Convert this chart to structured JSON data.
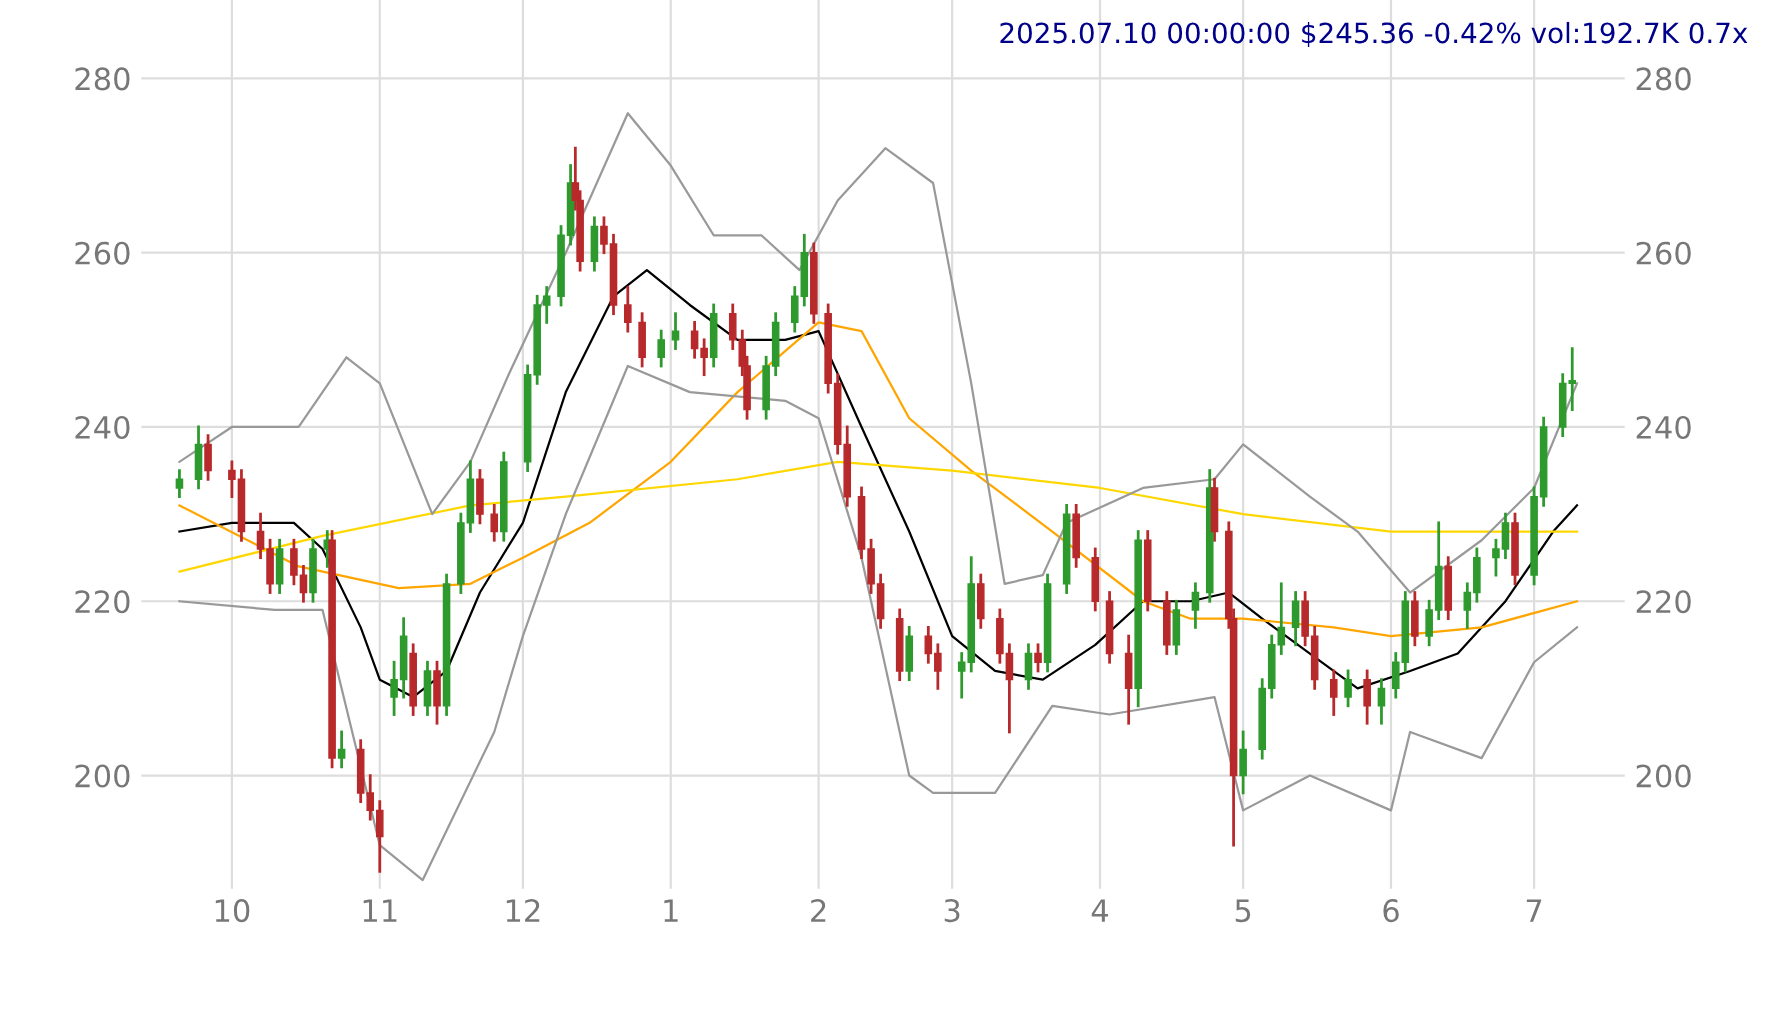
{
  "chart_data": {
    "type": "candlestick",
    "title": "2025.07.10 00:00:00 $245.36 -0.42% vol:192.7K 0.7x",
    "x": [
      "2024-09-20",
      "2024-09-24",
      "2024-09-26",
      "2024-10-01",
      "2024-10-03",
      "2024-10-07",
      "2024-10-09",
      "2024-10-11",
      "2024-10-14",
      "2024-10-16",
      "2024-10-18",
      "2024-10-21",
      "2024-10-22",
      "2024-10-24",
      "2024-10-28",
      "2024-10-30",
      "2024-11-01",
      "2024-11-04",
      "2024-11-06",
      "2024-11-08",
      "2024-11-11",
      "2024-11-13",
      "2024-11-15",
      "2024-11-18",
      "2024-11-20",
      "2024-11-22",
      "2024-11-25",
      "2024-11-27",
      "2024-12-02",
      "2024-12-04",
      "2024-12-06",
      "2024-12-09",
      "2024-12-11",
      "2024-12-12",
      "2024-12-13",
      "2024-12-16",
      "2024-12-18",
      "2024-12-20",
      "2024-12-23",
      "2024-12-26",
      "2024-12-30",
      "2025-01-02",
      "2025-01-06",
      "2025-01-08",
      "2025-01-10",
      "2025-01-14",
      "2025-01-16",
      "2025-01-17",
      "2025-01-21",
      "2025-01-23",
      "2025-01-27",
      "2025-01-29",
      "2025-01-31",
      "2025-02-03",
      "2025-02-05",
      "2025-02-07",
      "2025-02-10",
      "2025-02-12",
      "2025-02-14",
      "2025-02-18",
      "2025-02-20",
      "2025-02-24",
      "2025-02-26",
      "2025-03-03",
      "2025-03-05",
      "2025-03-07",
      "2025-03-11",
      "2025-03-13",
      "2025-03-17",
      "2025-03-19",
      "2025-03-21",
      "2025-03-25",
      "2025-03-27",
      "2025-03-31",
      "2025-04-03",
      "2025-04-07",
      "2025-04-09",
      "2025-04-11",
      "2025-04-15",
      "2025-04-17",
      "2025-04-21",
      "2025-04-24",
      "2025-04-25",
      "2025-04-28",
      "2025-04-29",
      "2025-05-01",
      "2025-05-05",
      "2025-05-07",
      "2025-05-09",
      "2025-05-12",
      "2025-05-14",
      "2025-05-16",
      "2025-05-20",
      "2025-05-23",
      "2025-05-27",
      "2025-05-30",
      "2025-06-02",
      "2025-06-04",
      "2025-06-06",
      "2025-06-09",
      "2025-06-11",
      "2025-06-13",
      "2025-06-17",
      "2025-06-19",
      "2025-06-23",
      "2025-06-25",
      "2025-06-27",
      "2025-07-01",
      "2025-07-03",
      "2025-07-07",
      "2025-07-09"
    ],
    "ohlc": [
      [
        233,
        235,
        232,
        234
      ],
      [
        234,
        240,
        233,
        238
      ],
      [
        238,
        239,
        234,
        235
      ],
      [
        235,
        236,
        232,
        234
      ],
      [
        234,
        235,
        227,
        228
      ],
      [
        228,
        230,
        225,
        226
      ],
      [
        226,
        227,
        221,
        222
      ],
      [
        222,
        227,
        221,
        226
      ],
      [
        226,
        227,
        222,
        223
      ],
      [
        223,
        224,
        220,
        221
      ],
      [
        221,
        227,
        220,
        226
      ],
      [
        226,
        228,
        224,
        227
      ],
      [
        227,
        228,
        201,
        202
      ],
      [
        202,
        205,
        201,
        203
      ],
      [
        203,
        204,
        197,
        198
      ],
      [
        198,
        200,
        195,
        196
      ],
      [
        196,
        197,
        189,
        193
      ],
      [
        209,
        213,
        207,
        211
      ],
      [
        211,
        218,
        209,
        216
      ],
      [
        214,
        215,
        207,
        208
      ],
      [
        208,
        213,
        207,
        212
      ],
      [
        212,
        213,
        206,
        208
      ],
      [
        208,
        223,
        207,
        222
      ],
      [
        222,
        230,
        221,
        229
      ],
      [
        229,
        236,
        228,
        234
      ],
      [
        234,
        235,
        229,
        230
      ],
      [
        230,
        231,
        227,
        228
      ],
      [
        228,
        237,
        227,
        236
      ],
      [
        236,
        247,
        235,
        246
      ],
      [
        246,
        255,
        245,
        254
      ],
      [
        254,
        256,
        252,
        255
      ],
      [
        255,
        263,
        254,
        262
      ],
      [
        262,
        270,
        261,
        268
      ],
      [
        268,
        272,
        265,
        266
      ],
      [
        266,
        267,
        258,
        259
      ],
      [
        259,
        264,
        258,
        263
      ],
      [
        263,
        264,
        260,
        261
      ],
      [
        261,
        262,
        253,
        254
      ],
      [
        254,
        256,
        251,
        252
      ],
      [
        252,
        253,
        247,
        248
      ],
      [
        248,
        251,
        247,
        250
      ],
      [
        250,
        253,
        249,
        251
      ],
      [
        251,
        252,
        248,
        249
      ],
      [
        249,
        250,
        246,
        248
      ],
      [
        248,
        254,
        247,
        253
      ],
      [
        253,
        254,
        249,
        250
      ],
      [
        250,
        251,
        246,
        247
      ],
      [
        247,
        248,
        241,
        242
      ],
      [
        242,
        248,
        241,
        247
      ],
      [
        247,
        253,
        246,
        252
      ],
      [
        252,
        256,
        251,
        255
      ],
      [
        255,
        262,
        254,
        260
      ],
      [
        260,
        261,
        252,
        253
      ],
      [
        253,
        254,
        244,
        245
      ],
      [
        245,
        246,
        237,
        238
      ],
      [
        238,
        240,
        231,
        232
      ],
      [
        232,
        233,
        225,
        226
      ],
      [
        226,
        227,
        221,
        222
      ],
      [
        222,
        223,
        217,
        218
      ],
      [
        218,
        219,
        211,
        212
      ],
      [
        212,
        217,
        211,
        216
      ],
      [
        216,
        217,
        213,
        214
      ],
      [
        214,
        215,
        210,
        212
      ],
      [
        212,
        214,
        209,
        213
      ],
      [
        213,
        225,
        212,
        222
      ],
      [
        222,
        223,
        217,
        218
      ],
      [
        218,
        219,
        213,
        214
      ],
      [
        214,
        215,
        205,
        211
      ],
      [
        211,
        215,
        210,
        214
      ],
      [
        214,
        215,
        212,
        213
      ],
      [
        213,
        223,
        212,
        222
      ],
      [
        222,
        231,
        221,
        230
      ],
      [
        230,
        231,
        224,
        225
      ],
      [
        225,
        226,
        219,
        220
      ],
      [
        220,
        221,
        213,
        214
      ],
      [
        214,
        216,
        206,
        210
      ],
      [
        210,
        228,
        208,
        227
      ],
      [
        227,
        228,
        219,
        220
      ],
      [
        220,
        221,
        214,
        215
      ],
      [
        215,
        220,
        214,
        219
      ],
      [
        219,
        222,
        217,
        221
      ],
      [
        221,
        235,
        220,
        233
      ],
      [
        233,
        234,
        227,
        228
      ],
      [
        228,
        229,
        217,
        218
      ],
      [
        218,
        219,
        192,
        200
      ],
      [
        200,
        205,
        198,
        203
      ],
      [
        203,
        211,
        202,
        210
      ],
      [
        210,
        216,
        209,
        215
      ],
      [
        215,
        222,
        214,
        217
      ],
      [
        217,
        221,
        215,
        220
      ],
      [
        220,
        221,
        215,
        216
      ],
      [
        216,
        217,
        210,
        211
      ],
      [
        211,
        212,
        207,
        209
      ],
      [
        209,
        212,
        208,
        211
      ],
      [
        211,
        212,
        206,
        208
      ],
      [
        208,
        211,
        206,
        210
      ],
      [
        210,
        214,
        209,
        213
      ],
      [
        213,
        221,
        212,
        220
      ],
      [
        220,
        221,
        215,
        216
      ],
      [
        216,
        220,
        215,
        219
      ],
      [
        219,
        229,
        218,
        224
      ],
      [
        224,
        225,
        218,
        219
      ],
      [
        219,
        222,
        217,
        221
      ],
      [
        221,
        226,
        220,
        225
      ],
      [
        225,
        227,
        223,
        226
      ],
      [
        226,
        230,
        225,
        229
      ],
      [
        229,
        230,
        222,
        223
      ],
      [
        223,
        233,
        222,
        232
      ],
      [
        232,
        241,
        231,
        240
      ],
      [
        240,
        246,
        239,
        245
      ],
      [
        245,
        249,
        242,
        245
      ]
    ],
    "colors": [
      "#2e9a2e",
      "#2e9a2e",
      "#b8292b",
      "#b8292b",
      "#b8292b",
      "#b8292b",
      "#b8292b",
      "#2e9a2e",
      "#b8292b",
      "#b8292b",
      "#2e9a2e",
      "#2e9a2e",
      "#b8292b",
      "#2e9a2e",
      "#b8292b",
      "#b8292b",
      "#b8292b",
      "#2e9a2e",
      "#2e9a2e",
      "#b8292b",
      "#2e9a2e",
      "#b8292b",
      "#2e9a2e",
      "#2e9a2e",
      "#2e9a2e",
      "#b8292b",
      "#b8292b",
      "#2e9a2e",
      "#2e9a2e",
      "#2e9a2e",
      "#2e9a2e",
      "#2e9a2e",
      "#2e9a2e",
      "#b8292b",
      "#b8292b",
      "#2e9a2e",
      "#b8292b",
      "#b8292b",
      "#b8292b",
      "#b8292b",
      "#2e9a2e",
      "#2e9a2e",
      "#b8292b",
      "#b8292b",
      "#2e9a2e",
      "#b8292b",
      "#b8292b",
      "#b8292b",
      "#2e9a2e",
      "#2e9a2e",
      "#2e9a2e",
      "#2e9a2e",
      "#b8292b",
      "#b8292b",
      "#b8292b",
      "#b8292b",
      "#b8292b",
      "#b8292b",
      "#b8292b",
      "#b8292b",
      "#2e9a2e",
      "#b8292b",
      "#b8292b",
      "#2e9a2e",
      "#2e9a2e",
      "#b8292b",
      "#b8292b",
      "#b8292b",
      "#2e9a2e",
      "#b8292b",
      "#2e9a2e",
      "#2e9a2e",
      "#b8292b",
      "#b8292b",
      "#b8292b",
      "#b8292b",
      "#2e9a2e",
      "#b8292b",
      "#b8292b",
      "#2e9a2e",
      "#2e9a2e",
      "#2e9a2e",
      "#b8292b",
      "#b8292b",
      "#b8292b",
      "#2e9a2e",
      "#2e9a2e",
      "#2e9a2e",
      "#2e9a2e",
      "#2e9a2e",
      "#b8292b",
      "#b8292b",
      "#b8292b",
      "#2e9a2e",
      "#b8292b",
      "#2e9a2e",
      "#2e9a2e",
      "#2e9a2e",
      "#b8292b",
      "#2e9a2e",
      "#2e9a2e",
      "#b8292b",
      "#2e9a2e",
      "#2e9a2e",
      "#2e9a2e",
      "#2e9a2e",
      "#b8292b",
      "#2e9a2e",
      "#2e9a2e",
      "#2e9a2e",
      "#2e9a2e"
    ],
    "series": [
      {
        "type": "line",
        "color": "#000000",
        "x": [
          "2024-09-20",
          "2024-10-01",
          "2024-10-14",
          "2024-10-20",
          "2024-10-28",
          "2024-11-01",
          "2024-11-08",
          "2024-11-15",
          "2024-11-22",
          "2024-12-01",
          "2024-12-10",
          "2024-12-20",
          "2024-12-27",
          "2025-01-05",
          "2025-01-15",
          "2025-01-25",
          "2025-02-01",
          "2025-02-10",
          "2025-02-20",
          "2025-03-01",
          "2025-03-10",
          "2025-03-20",
          "2025-03-31",
          "2025-04-10",
          "2025-04-20",
          "2025-04-28",
          "2025-05-05",
          "2025-05-15",
          "2025-05-25",
          "2025-06-05",
          "2025-06-15",
          "2025-06-25",
          "2025-07-05",
          "2025-07-10"
        ],
        "values": [
          228,
          229,
          229,
          226,
          217,
          211,
          209,
          212,
          221,
          229,
          244,
          255,
          258,
          254,
          250,
          250,
          251,
          240,
          228,
          216,
          212,
          211,
          215,
          220,
          220,
          221,
          218,
          214,
          210,
          212,
          214,
          220,
          228,
          231
        ]
      },
      {
        "type": "line",
        "color": "#ffa500",
        "x": [
          "2024-09-20",
          "2024-10-15",
          "2024-11-05",
          "2024-11-20",
          "2024-12-01",
          "2024-12-15",
          "2025-01-01",
          "2025-01-15",
          "2025-02-01",
          "2025-02-10",
          "2025-02-20",
          "2025-03-05",
          "2025-03-22",
          "2025-04-10",
          "2025-04-20",
          "2025-05-01",
          "2025-05-20",
          "2025-06-01",
          "2025-06-20",
          "2025-07-10"
        ],
        "values": [
          231,
          224,
          221.5,
          222,
          225,
          229,
          236,
          244,
          252,
          251,
          241,
          235,
          228,
          220,
          218,
          218,
          217,
          216,
          217,
          220
        ]
      },
      {
        "type": "line",
        "color": "#ffd700",
        "x": [
          "2024-09-20",
          "2024-10-20",
          "2024-11-20",
          "2024-12-10",
          "2025-01-15",
          "2025-02-05",
          "2025-03-01",
          "2025-04-01",
          "2025-05-01",
          "2025-06-01",
          "2025-07-10"
        ],
        "values": [
          223.4,
          227.5,
          231,
          232,
          234,
          236,
          235,
          233,
          230,
          228,
          228
        ]
      },
      {
        "type": "line",
        "color": "#999999",
        "x": [
          "2024-09-20",
          "2024-10-01",
          "2024-10-15",
          "2024-10-25",
          "2024-11-01",
          "2024-11-12",
          "2024-11-20",
          "2024-11-28",
          "2024-12-10",
          "2024-12-23",
          "2025-01-01",
          "2025-01-10",
          "2025-01-20",
          "2025-01-28",
          "2025-02-05",
          "2025-02-15",
          "2025-02-25",
          "2025-03-05",
          "2025-03-12",
          "2025-03-20",
          "2025-03-25",
          "2025-04-10",
          "2025-04-25",
          "2025-05-01",
          "2025-05-15",
          "2025-05-25",
          "2025-06-05",
          "2025-06-20",
          "2025-07-01",
          "2025-07-10"
        ],
        "values": [
          236,
          240,
          240,
          248,
          245,
          230,
          236,
          246,
          260,
          276,
          270,
          262,
          262,
          258,
          266,
          272,
          268,
          245,
          222,
          223,
          229,
          233,
          234,
          238,
          232,
          228,
          221,
          227,
          233,
          245
        ]
      },
      {
        "type": "line",
        "color": "#999999",
        "x": [
          "2024-09-20",
          "2024-10-10",
          "2024-10-20",
          "2024-11-01",
          "2024-11-10",
          "2024-11-25",
          "2024-12-01",
          "2024-12-10",
          "2024-12-23",
          "2025-01-05",
          "2025-01-25",
          "2025-02-01",
          "2025-02-10",
          "2025-02-20",
          "2025-02-25",
          "2025-03-10",
          "2025-03-22",
          "2025-04-03",
          "2025-04-25",
          "2025-05-01",
          "2025-05-15",
          "2025-06-01",
          "2025-06-05",
          "2025-06-20",
          "2025-07-01",
          "2025-07-10"
        ],
        "values": [
          220,
          219,
          219,
          192,
          188,
          205,
          216,
          230,
          247,
          244,
          243,
          241,
          225,
          200,
          198,
          198,
          208,
          207,
          209,
          196,
          200,
          196,
          205,
          202,
          213,
          217
        ]
      }
    ],
    "xlim": [
      "2024-09-12",
      "2025-07-20"
    ],
    "xticks": [
      {
        "value": "2024-10-01",
        "label": "10"
      },
      {
        "value": "2024-11-01",
        "label": "11"
      },
      {
        "value": "2024-12-01",
        "label": "12"
      },
      {
        "value": "2025-01-01",
        "label": "1"
      },
      {
        "value": "2025-02-01",
        "label": "2"
      },
      {
        "value": "2025-03-01",
        "label": "3"
      },
      {
        "value": "2025-04-01",
        "label": "4"
      },
      {
        "value": "2025-05-01",
        "label": "5"
      },
      {
        "value": "2025-06-01",
        "label": "6"
      },
      {
        "value": "2025-07-01",
        "label": "7"
      }
    ],
    "ylim": [
      187,
      289
    ],
    "yticks": [
      200,
      220,
      240,
      260,
      280
    ],
    "y2lim": [
      187,
      289
    ],
    "y2ticks": [
      200,
      220,
      240,
      260,
      280
    ],
    "grid": true
  }
}
